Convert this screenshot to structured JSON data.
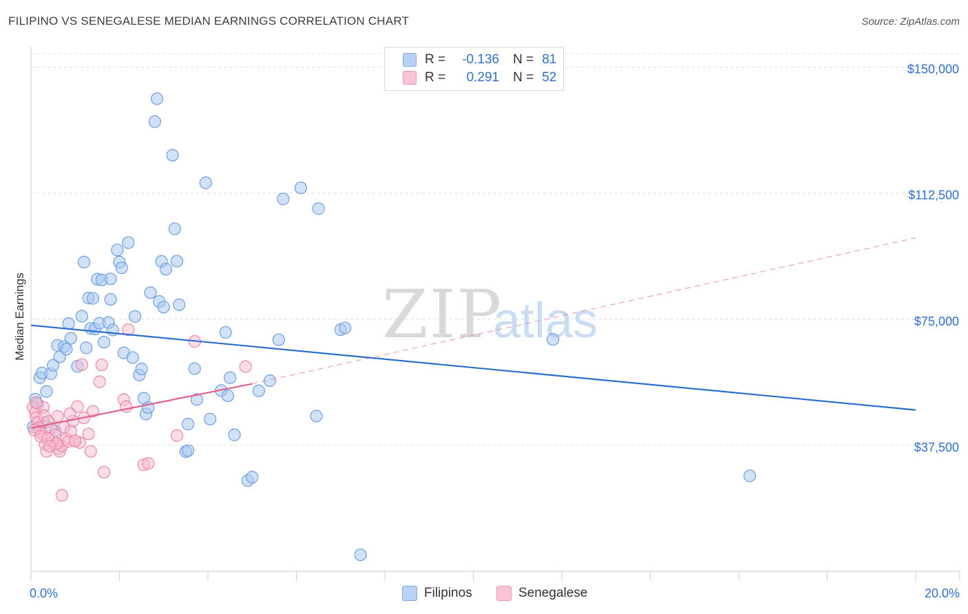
{
  "title": "FILIPINO VS SENEGALESE MEDIAN EARNINGS CORRELATION CHART",
  "source": "Source: ZipAtlas.com",
  "watermark": {
    "zip": "ZIP",
    "atlas": "atlas"
  },
  "colors": {
    "blue_fill": "#a9c9f2",
    "blue_stroke": "#6e9fe0",
    "blue_line": "#2a6fd0",
    "pink_fill": "#f7bccf",
    "pink_stroke": "#ea87a8",
    "pink_line": "#e2608c",
    "axis_label": "#2f6fcf",
    "grid": "#dcdcdc"
  },
  "legend": {
    "rows": [
      {
        "r_label": "R =",
        "r_value": "-0.136",
        "n_label": "N =",
        "n_value": "81"
      },
      {
        "r_label": "R =",
        "r_value": "0.291",
        "n_label": "N =",
        "n_value": "52"
      }
    ]
  },
  "bottom_legend": {
    "series1": "Filipinos",
    "series2": "Senegalese"
  },
  "chart_data": {
    "type": "scatter",
    "title": "FILIPINO VS SENEGALESE MEDIAN EARNINGS CORRELATION CHART",
    "xlabel": "",
    "ylabel": "Median Earnings",
    "xlim": [
      0,
      20
    ],
    "ylim": [
      0,
      154000
    ],
    "x_tick_labels": {
      "left": "0.0%",
      "right": "20.0%"
    },
    "y_ticks": [
      {
        "value": 150000,
        "label": "$150,000"
      },
      {
        "value": 112500,
        "label": "$112,500"
      },
      {
        "value": 75000,
        "label": "$75,000"
      },
      {
        "value": 37500,
        "label": "$37,500"
      }
    ],
    "series": [
      {
        "name": "Filipinos",
        "trend": {
          "x0": 0,
          "y0": 73200,
          "x1": 20,
          "y1": 48000
        },
        "points": [
          [
            0.1,
            51200
          ],
          [
            0.15,
            49800
          ],
          [
            0.2,
            57600
          ],
          [
            0.25,
            59000
          ],
          [
            0.35,
            53500
          ],
          [
            0.45,
            58800
          ],
          [
            0.5,
            61300
          ],
          [
            0.6,
            67200
          ],
          [
            0.65,
            63800
          ],
          [
            0.75,
            66900
          ],
          [
            0.8,
            66100
          ],
          [
            0.85,
            73700
          ],
          [
            0.9,
            69300
          ],
          [
            1.05,
            61000
          ],
          [
            1.15,
            75900
          ],
          [
            1.25,
            66500
          ],
          [
            1.35,
            72300
          ],
          [
            1.45,
            72100
          ],
          [
            1.55,
            73800
          ],
          [
            1.65,
            68200
          ],
          [
            1.75,
            74000
          ],
          [
            1.85,
            71800
          ],
          [
            1.2,
            92000
          ],
          [
            1.3,
            81300
          ],
          [
            1.4,
            81200
          ],
          [
            1.5,
            86900
          ],
          [
            1.6,
            86700
          ],
          [
            1.8,
            87000
          ],
          [
            1.8,
            80900
          ],
          [
            1.95,
            95600
          ],
          [
            2.0,
            92000
          ],
          [
            2.05,
            90300
          ],
          [
            2.1,
            65000
          ],
          [
            2.2,
            97800
          ],
          [
            2.3,
            63600
          ],
          [
            2.35,
            75800
          ],
          [
            2.45,
            58400
          ],
          [
            2.5,
            60200
          ],
          [
            2.55,
            51500
          ],
          [
            2.6,
            46800
          ],
          [
            2.65,
            48700
          ],
          [
            2.7,
            82900
          ],
          [
            2.8,
            133800
          ],
          [
            2.85,
            140600
          ],
          [
            2.9,
            80300
          ],
          [
            2.95,
            92200
          ],
          [
            3.0,
            78600
          ],
          [
            3.05,
            89900
          ],
          [
            3.2,
            123800
          ],
          [
            3.25,
            101900
          ],
          [
            3.3,
            92300
          ],
          [
            3.35,
            79300
          ],
          [
            3.5,
            35600
          ],
          [
            3.55,
            35900
          ],
          [
            3.55,
            43800
          ],
          [
            3.7,
            60300
          ],
          [
            3.75,
            51100
          ],
          [
            3.95,
            115600
          ],
          [
            4.05,
            45300
          ],
          [
            4.3,
            53800
          ],
          [
            4.4,
            71100
          ],
          [
            4.45,
            52200
          ],
          [
            4.5,
            57600
          ],
          [
            4.6,
            40600
          ],
          [
            4.9,
            27000
          ],
          [
            5.0,
            28000
          ],
          [
            5.15,
            53700
          ],
          [
            5.4,
            56700
          ],
          [
            5.6,
            68900
          ],
          [
            5.7,
            110800
          ],
          [
            6.1,
            114100
          ],
          [
            6.45,
            46200
          ],
          [
            6.5,
            107900
          ],
          [
            7.0,
            71900
          ],
          [
            7.1,
            72400
          ],
          [
            7.45,
            4900
          ],
          [
            11.8,
            69000
          ],
          [
            16.25,
            28400
          ],
          [
            0.05,
            43000
          ],
          [
            0.3,
            44200
          ],
          [
            0.55,
            41700
          ]
        ]
      },
      {
        "name": "Senegalese",
        "trend": {
          "x0": 0,
          "y0": 42600,
          "x1": 5.0,
          "y1": 55800,
          "dash_x1": 20,
          "dash_y1": 99200
        },
        "points": [
          [
            0.05,
            48800
          ],
          [
            0.1,
            47300
          ],
          [
            0.12,
            45600
          ],
          [
            0.15,
            44300
          ],
          [
            0.18,
            42600
          ],
          [
            0.2,
            41600
          ],
          [
            0.25,
            40900
          ],
          [
            0.28,
            48800
          ],
          [
            0.3,
            46300
          ],
          [
            0.32,
            37800
          ],
          [
            0.35,
            35700
          ],
          [
            0.4,
            44600
          ],
          [
            0.45,
            42600
          ],
          [
            0.5,
            38700
          ],
          [
            0.55,
            40600
          ],
          [
            0.6,
            46100
          ],
          [
            0.62,
            36500
          ],
          [
            0.65,
            35700
          ],
          [
            0.7,
            37300
          ],
          [
            0.75,
            42900
          ],
          [
            0.8,
            39400
          ],
          [
            0.85,
            38700
          ],
          [
            0.9,
            41600
          ],
          [
            0.95,
            44700
          ],
          [
            1.0,
            38800
          ],
          [
            1.05,
            49000
          ],
          [
            1.1,
            38300
          ],
          [
            1.15,
            61500
          ],
          [
            1.2,
            45700
          ],
          [
            1.3,
            40900
          ],
          [
            1.35,
            35700
          ],
          [
            1.4,
            47600
          ],
          [
            1.55,
            56400
          ],
          [
            1.6,
            61400
          ],
          [
            1.65,
            29500
          ],
          [
            2.1,
            51100
          ],
          [
            2.15,
            49000
          ],
          [
            2.2,
            71900
          ],
          [
            2.55,
            31700
          ],
          [
            2.65,
            32100
          ],
          [
            3.3,
            40400
          ],
          [
            3.7,
            68400
          ],
          [
            4.85,
            60900
          ],
          [
            0.7,
            22600
          ],
          [
            1.0,
            38800
          ],
          [
            0.08,
            42000
          ],
          [
            0.22,
            40100
          ],
          [
            0.38,
            39600
          ],
          [
            0.58,
            38000
          ],
          [
            0.42,
            37200
          ],
          [
            0.88,
            46900
          ],
          [
            0.12,
            50200
          ]
        ]
      }
    ]
  }
}
